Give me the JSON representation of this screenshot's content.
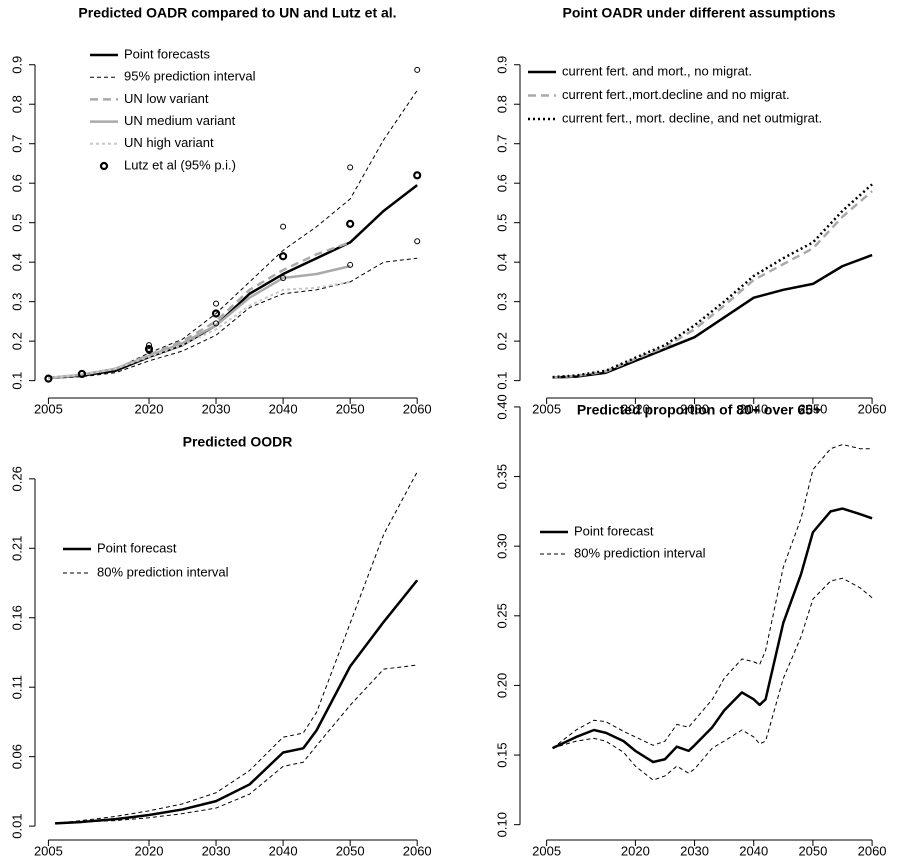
{
  "chart_data": [
    {
      "type": "line",
      "title": "Predicted OADR compared to UN and Lutz et al.",
      "x": [
        2005,
        2010,
        2015,
        2020,
        2025,
        2030,
        2035,
        2040,
        2045,
        2050,
        2055,
        2060
      ],
      "series": [
        {
          "name": "Point forecasts",
          "color": "#000000",
          "width": 2.5,
          "values": [
            0.107,
            0.113,
            0.125,
            0.16,
            0.19,
            0.24,
            0.32,
            0.37,
            0.41,
            0.45,
            0.53,
            0.595
          ]
        },
        {
          "name": "95% prediction interval",
          "color": "#000000",
          "width": 1,
          "dash": "4,3",
          "values": [
            0.108,
            0.115,
            0.13,
            0.17,
            0.205,
            0.27,
            0.35,
            0.43,
            0.49,
            0.56,
            0.71,
            0.835
          ]
        },
        {
          "color": "#000000",
          "width": 1,
          "dash": "4,3",
          "values": [
            0.105,
            0.11,
            0.12,
            0.15,
            0.175,
            0.215,
            0.285,
            0.32,
            0.33,
            0.35,
            0.4,
            0.41
          ]
        },
        {
          "name": "UN low variant",
          "color": "#aaaaaa",
          "width": 2.5,
          "dash": "8,5",
          "values": [
            0.107,
            0.115,
            0.13,
            0.165,
            0.2,
            0.25,
            0.33,
            0.38,
            0.42,
            0.45,
            null,
            null
          ]
        },
        {
          "name": "UN medium variant",
          "color": "#aaaaaa",
          "width": 2.5,
          "values": [
            0.107,
            0.115,
            0.13,
            0.163,
            0.195,
            0.24,
            0.31,
            0.36,
            0.37,
            0.39,
            null,
            null
          ]
        },
        {
          "name": "UN high variant",
          "color": "#c8c8c8",
          "width": 2,
          "dash": "3,3",
          "values": [
            0.107,
            0.115,
            0.13,
            0.16,
            0.19,
            0.23,
            0.29,
            0.33,
            0.335,
            0.35,
            null,
            null
          ]
        },
        {
          "name": "Lutz et al (95% p.i.)",
          "color": "#000000",
          "marker": "circle",
          "values": [
            0.105,
            0.117,
            null,
            0.18,
            null,
            0.27,
            null,
            0.415,
            null,
            0.497,
            null,
            0.62
          ],
          "lower": [
            null,
            null,
            null,
            0.175,
            null,
            0.245,
            null,
            0.36,
            null,
            0.393,
            null,
            0.453
          ],
          "upper": [
            null,
            null,
            null,
            0.19,
            null,
            0.295,
            null,
            0.49,
            null,
            0.64,
            null,
            0.887
          ]
        }
      ],
      "xlim": [
        2003,
        2063.4
      ],
      "ylim": [
        0.056,
        0.95
      ],
      "xticks": [
        2005,
        2020,
        2030,
        2040,
        2050,
        2060
      ],
      "yticks": [
        0.1,
        0.2,
        0.3,
        0.4,
        0.5,
        0.6,
        0.7,
        0.8,
        0.9
      ]
    },
    {
      "type": "line",
      "title": "Point OADR under different assumptions",
      "x": [
        2006,
        2010,
        2015,
        2020,
        2025,
        2030,
        2035,
        2040,
        2045,
        2050,
        2055,
        2060
      ],
      "series": [
        {
          "name": "current fert. and mort., no migrat.",
          "color": "#000000",
          "width": 2.5,
          "values": [
            0.108,
            0.11,
            0.12,
            0.15,
            0.18,
            0.21,
            0.26,
            0.31,
            0.33,
            0.345,
            0.39,
            0.418
          ]
        },
        {
          "name": "current fert.,mort.decline and no migrat.",
          "color": "#aaaaaa",
          "width": 2.5,
          "dash": "8,5",
          "values": [
            0.108,
            0.112,
            0.123,
            0.155,
            0.185,
            0.23,
            0.29,
            0.355,
            0.395,
            0.435,
            0.515,
            0.58
          ]
        },
        {
          "name": "current fert., mort. decline, and net outmigrat.",
          "color": "#000000",
          "width": 2.5,
          "dash": "2,3",
          "values": [
            0.109,
            0.113,
            0.125,
            0.158,
            0.19,
            0.24,
            0.3,
            0.365,
            0.41,
            0.45,
            0.53,
            0.597
          ]
        }
      ],
      "xlim": [
        2000.5,
        2061
      ],
      "ylim": [
        0.056,
        0.95
      ],
      "xticks": [
        2005,
        2020,
        2030,
        2040,
        2050,
        2060
      ],
      "yticks": [
        0.1,
        0.2,
        0.3,
        0.4,
        0.5,
        0.6,
        0.7,
        0.8,
        0.9
      ]
    },
    {
      "type": "line",
      "title": "Predicted OODR",
      "x": [
        2006,
        2010,
        2015,
        2020,
        2025,
        2030,
        2035,
        2040,
        2043,
        2045,
        2050,
        2055,
        2060
      ],
      "series": [
        {
          "name": "Point forecast",
          "color": "#000000",
          "width": 2.5,
          "values": [
            0.012,
            0.013,
            0.015,
            0.018,
            0.022,
            0.028,
            0.04,
            0.063,
            0.066,
            0.079,
            0.125,
            0.157,
            0.187
          ]
        },
        {
          "name": "80% prediction interval",
          "color": "#000000",
          "width": 1,
          "dash": "4,3",
          "values": [
            0.012,
            0.014,
            0.017,
            0.021,
            0.026,
            0.034,
            0.05,
            0.074,
            0.077,
            0.092,
            0.156,
            0.22,
            0.265
          ]
        },
        {
          "color": "#000000",
          "width": 1,
          "dash": "4,3",
          "values": [
            0.012,
            0.013,
            0.014,
            0.016,
            0.019,
            0.023,
            0.033,
            0.053,
            0.056,
            0.068,
            0.097,
            0.123,
            0.126
          ]
        }
      ],
      "xlim": [
        2003,
        2063.4
      ],
      "ylim": [
        0.0,
        0.275
      ],
      "xticks": [
        2005,
        2020,
        2030,
        2040,
        2050,
        2060
      ],
      "yticks": [
        0.01,
        0.06,
        0.11,
        0.16,
        0.21,
        0.26
      ]
    },
    {
      "type": "line",
      "title": "Predicted proportion of 80+ over 65+",
      "x": [
        2006,
        2010,
        2013,
        2015,
        2018,
        2020,
        2023,
        2025,
        2027,
        2029,
        2030,
        2033,
        2035,
        2038,
        2040,
        2041,
        2042,
        2045,
        2048,
        2050,
        2053,
        2055,
        2058,
        2060
      ],
      "series": [
        {
          "name": "Point forecast",
          "color": "#000000",
          "width": 2.5,
          "values": [
            0.155,
            0.163,
            0.168,
            0.166,
            0.16,
            0.153,
            0.145,
            0.147,
            0.156,
            0.153,
            0.157,
            0.17,
            0.182,
            0.195,
            0.19,
            0.186,
            0.19,
            0.245,
            0.28,
            0.31,
            0.325,
            0.327,
            0.323,
            0.32
          ]
        },
        {
          "name": "80% prediction interval",
          "color": "#000000",
          "width": 1,
          "dash": "4,3",
          "values": [
            0.155,
            0.168,
            0.175,
            0.174,
            0.167,
            0.163,
            0.157,
            0.16,
            0.172,
            0.17,
            0.175,
            0.19,
            0.205,
            0.219,
            0.217,
            0.215,
            0.225,
            0.285,
            0.32,
            0.355,
            0.37,
            0.373,
            0.37,
            0.37
          ]
        },
        {
          "color": "#000000",
          "width": 1,
          "dash": "4,3",
          "values": [
            0.155,
            0.16,
            0.162,
            0.16,
            0.152,
            0.142,
            0.132,
            0.135,
            0.142,
            0.137,
            0.14,
            0.155,
            0.16,
            0.168,
            0.163,
            0.158,
            0.16,
            0.205,
            0.235,
            0.262,
            0.275,
            0.277,
            0.27,
            0.263
          ]
        }
      ],
      "xlim": [
        2000.5,
        2061
      ],
      "ylim": [
        0.089,
        0.41
      ],
      "xticks": [
        2005,
        2020,
        2030,
        2040,
        2050,
        2060
      ],
      "yticks": [
        {
          "value": 0.1,
          "label": "0.10"
        },
        0.15,
        {
          "value": 0.2,
          "label": "0.20"
        },
        0.25,
        {
          "value": 0.3,
          "label": "0.30"
        },
        0.35,
        {
          "value": 0.4,
          "label": "0.40"
        }
      ]
    }
  ]
}
